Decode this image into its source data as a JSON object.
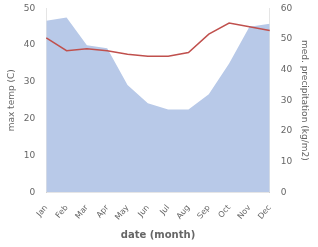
{
  "chart_data": {
    "type": "line",
    "categories": [
      "Jan",
      "Feb",
      "Mar",
      "Apr",
      "May",
      "Jun",
      "Jul",
      "Aug",
      "Sep",
      "Oct",
      "Nov",
      "Dec"
    ],
    "series": [
      {
        "type": "area",
        "axis": "y2",
        "color": "#b8c9e8",
        "values": [
          56,
          57,
          48,
          47,
          35,
          29,
          27,
          27,
          32,
          42,
          54,
          55
        ]
      },
      {
        "type": "line",
        "color": "#c0504d",
        "values": [
          42,
          38.5,
          39,
          38.5,
          37.5,
          37,
          37,
          38,
          43,
          46,
          45,
          44
        ]
      }
    ],
    "xlabel": "date (month)",
    "ylabel": "max temp (C)",
    "y2label": "med. precipitation (kg/m2)",
    "ylim": [
      0,
      50
    ],
    "yticks": [
      0,
      10,
      20,
      30,
      40,
      50
    ],
    "y2lim": [
      0,
      60
    ],
    "y2ticks": [
      0,
      10,
      20,
      30,
      40,
      50,
      60
    ],
    "grid": false
  }
}
